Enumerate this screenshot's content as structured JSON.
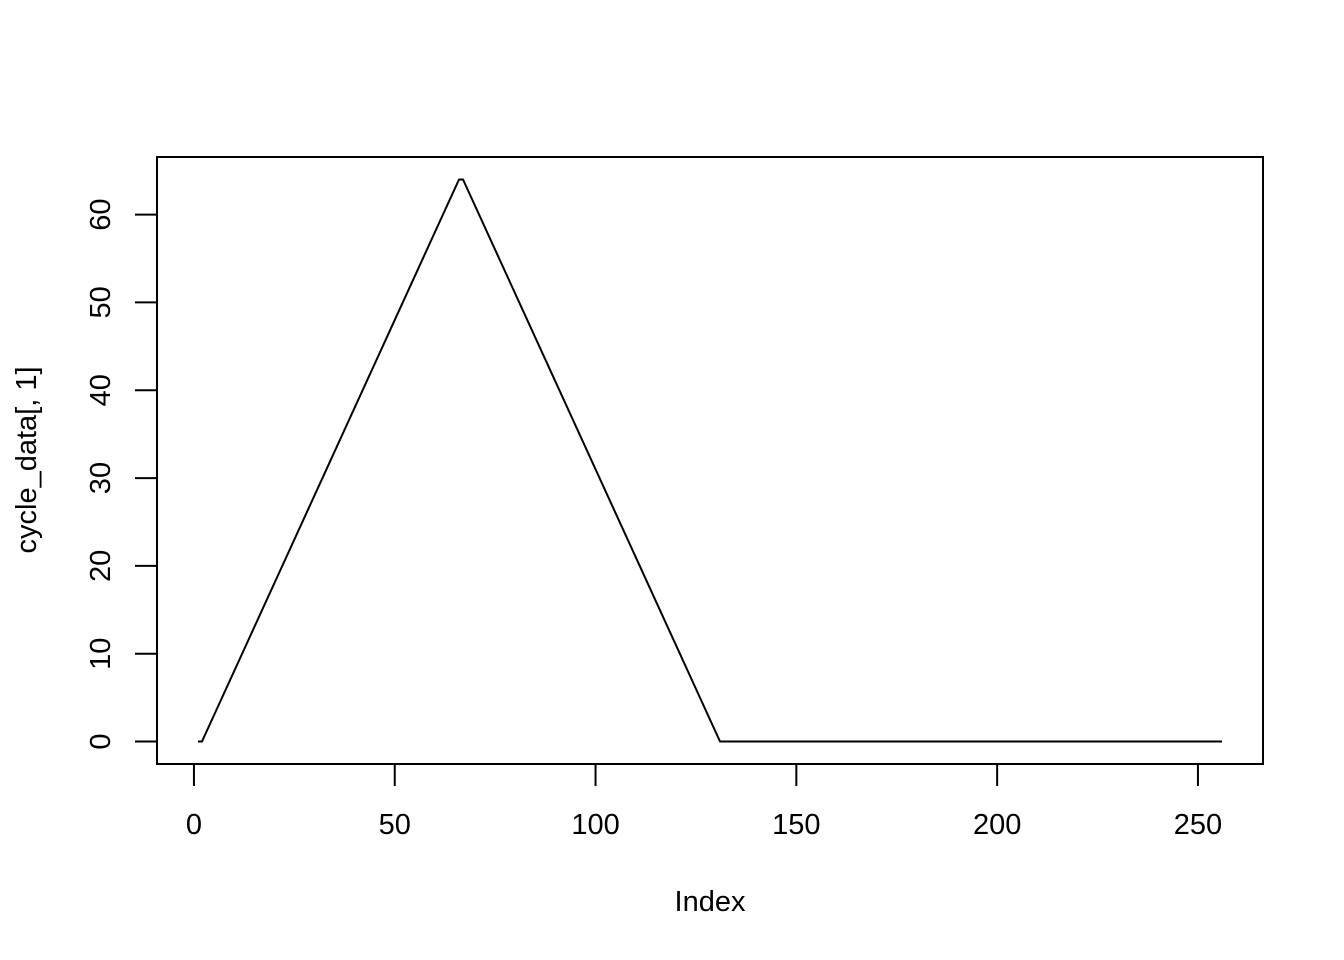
{
  "chart_data": {
    "type": "line",
    "title": "",
    "xlabel": "Index",
    "ylabel": "cycle_data[, 1]",
    "xlim": [
      -9.2,
      266.2
    ],
    "ylim": [
      -2.56,
      66.56
    ],
    "x_ticks": [
      0,
      50,
      100,
      150,
      200,
      250
    ],
    "y_ticks": [
      0,
      10,
      20,
      30,
      40,
      50,
      60
    ],
    "x_tick_labels": [
      "0",
      "50",
      "100",
      "150",
      "200",
      "250"
    ],
    "y_tick_labels": [
      "0",
      "10",
      "20",
      "30",
      "40",
      "50",
      "60"
    ],
    "grid": false,
    "legend": "none",
    "series": [
      {
        "color": "#000000",
        "x": [
          1,
          2,
          66,
          67,
          130,
          131,
          256
        ],
        "y": [
          0,
          0,
          64,
          64,
          1,
          0,
          0
        ]
      }
    ]
  },
  "colors": {
    "line": "#000000",
    "axis": "#000000",
    "background": "#ffffff"
  }
}
